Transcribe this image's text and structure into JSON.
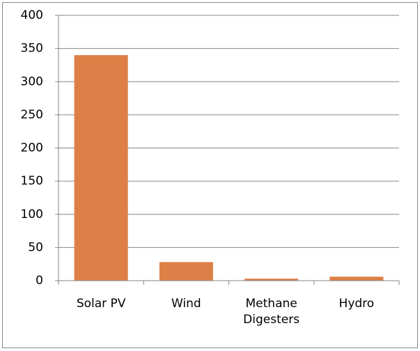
{
  "chart_data": {
    "type": "bar",
    "categories": [
      "Solar PV",
      "Wind",
      "Methane Digesters",
      "Hydro"
    ],
    "values": [
      340,
      28,
      3,
      6
    ],
    "color": "#dd8047",
    "ylim": [
      0,
      400
    ],
    "yticks": [
      0,
      50,
      100,
      150,
      200,
      250,
      300,
      350,
      400
    ],
    "grid": true
  }
}
